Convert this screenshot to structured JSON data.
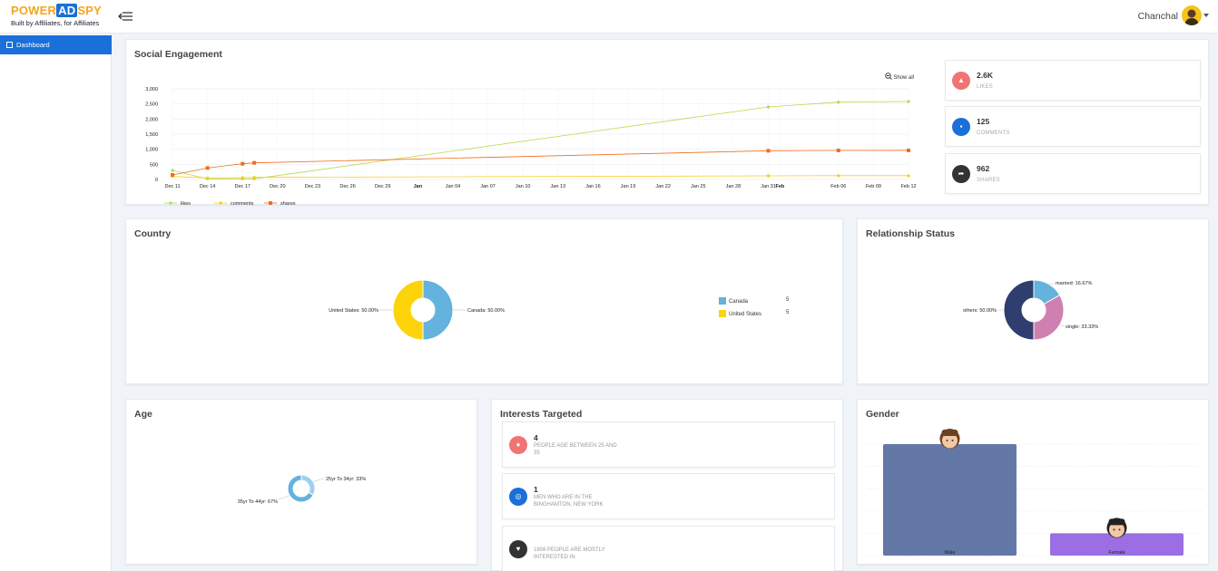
{
  "header": {
    "logo_power": "POWER",
    "logo_ad": "AD",
    "logo_spy": "SPY",
    "logo_tagline": "Built by Affiliates, for Affiliates",
    "user_name": "Chanchal"
  },
  "sidebar": {
    "items": [
      {
        "label": "Dashboard",
        "active": true
      }
    ]
  },
  "colors": {
    "primary": "#1a6fd8",
    "likes": "#b7d94a",
    "comments": "#f5cf1a",
    "shares": "#f16c1e"
  },
  "social_engagement": {
    "title": "Social Engagement",
    "show_all": "Show all",
    "stats": [
      {
        "value": "2.6K",
        "label": "LIKES",
        "color": "#f07474",
        "icon": "thumbs-up-icon"
      },
      {
        "value": "125",
        "label": "COMMENTS",
        "color": "#1a6fd8",
        "icon": "comments-icon"
      },
      {
        "value": "962",
        "label": "SHARES",
        "color": "#333333",
        "icon": "share-icon"
      }
    ]
  },
  "country": {
    "title": "Country",
    "legend": [
      {
        "label": "Canada",
        "value": "5"
      },
      {
        "label": "United States",
        "value": "5"
      }
    ]
  },
  "relationship": {
    "title": "Relationship Status"
  },
  "age": {
    "title": "Age"
  },
  "interests": {
    "title": "Interests Targeted",
    "items": [
      {
        "count": "4",
        "text": "PEOPLE AGE BETWEEN 25 AND 35",
        "color": "#f07474",
        "icon": "age-icon"
      },
      {
        "count": "1",
        "text": "MEN WHO ARE IN THE BINGHAMTON, NEW YORK",
        "color": "#1a6fd8",
        "icon": "globe-icon"
      },
      {
        "count": "",
        "text": "1808 PEOPLE ARE MOSTLY INTERESTED IN",
        "color": "#333333",
        "icon": "heart-icon"
      }
    ]
  },
  "gender": {
    "title": "Gender"
  },
  "chart_data": [
    {
      "type": "line",
      "x": [
        "Dec 11",
        "Dec 14",
        "Dec 17",
        "Dec 20",
        "Dec 23",
        "Dec 26",
        "Dec 29",
        "Jan",
        "Jan 04",
        "Jan 07",
        "Jan 10",
        "Jan 13",
        "Jan 16",
        "Jan 19",
        "Jan 22",
        "Jan 25",
        "Jan 28",
        "Jan 31",
        "Feb",
        "Feb 06",
        "Feb 09",
        "Feb 12"
      ],
      "ylim": [
        0,
        3000
      ],
      "yticks": [
        "0",
        "500",
        "1,000",
        "1,500",
        "2,000",
        "2,500",
        "3,000"
      ],
      "series": [
        {
          "name": "likes",
          "color": "#b7d94a",
          "points": [
            [
              "Dec 11",
              300
            ],
            [
              "Dec 14",
              20
            ],
            [
              "Dec 17",
              20
            ],
            [
              "Dec 18",
              20
            ],
            [
              "Jan 31",
              2400
            ],
            [
              "Feb 06",
              2560
            ],
            [
              "Feb 12",
              2580
            ]
          ]
        },
        {
          "name": "comments",
          "color": "#f5cf1a",
          "points": [
            [
              "Dec 11",
              100
            ],
            [
              "Dec 14",
              50
            ],
            [
              "Dec 17",
              60
            ],
            [
              "Dec 18",
              70
            ],
            [
              "Jan 31",
              120
            ],
            [
              "Feb 06",
              125
            ],
            [
              "Feb 12",
              125
            ]
          ]
        },
        {
          "name": "shares",
          "color": "#f16c1e",
          "points": [
            [
              "Dec 11",
              150
            ],
            [
              "Dec 14",
              380
            ],
            [
              "Dec 17",
              520
            ],
            [
              "Dec 18",
              550
            ],
            [
              "Jan 31",
              950
            ],
            [
              "Feb 06",
              960
            ],
            [
              "Feb 12",
              962
            ]
          ]
        }
      ],
      "grid": true,
      "legend_position": "bottom-left"
    },
    {
      "type": "pie",
      "labels": [
        "Canada",
        "United States"
      ],
      "values": [
        50,
        50
      ],
      "data_labels": [
        "Canada: 50.00%",
        "United States: 50.00%"
      ],
      "colors": [
        "#64b2de",
        "#fdd30a"
      ]
    },
    {
      "type": "pie",
      "labels": [
        "married",
        "single",
        "others"
      ],
      "values": [
        16.67,
        33.33,
        50
      ],
      "data_labels": [
        "married: 16.67%",
        "single: 33.33%",
        "others: 50.00%"
      ],
      "colors": [
        "#64b2de",
        "#d07fb1",
        "#2f3e6e"
      ]
    },
    {
      "type": "pie",
      "labels": [
        "25yr To 34yr",
        "35yr To 44yr"
      ],
      "values": [
        33,
        67
      ],
      "data_labels": [
        "25yr To 34yr: 33%",
        "35yr To 44yr: 67%"
      ],
      "colors": [
        "#9dd0f0",
        "#64b2de"
      ]
    },
    {
      "type": "bar",
      "categories": [
        "Male",
        "Female"
      ],
      "values": [
        5,
        1
      ],
      "ylim": [
        0,
        5
      ],
      "colors": [
        "#6478a8",
        "#9b6ee3"
      ]
    }
  ]
}
